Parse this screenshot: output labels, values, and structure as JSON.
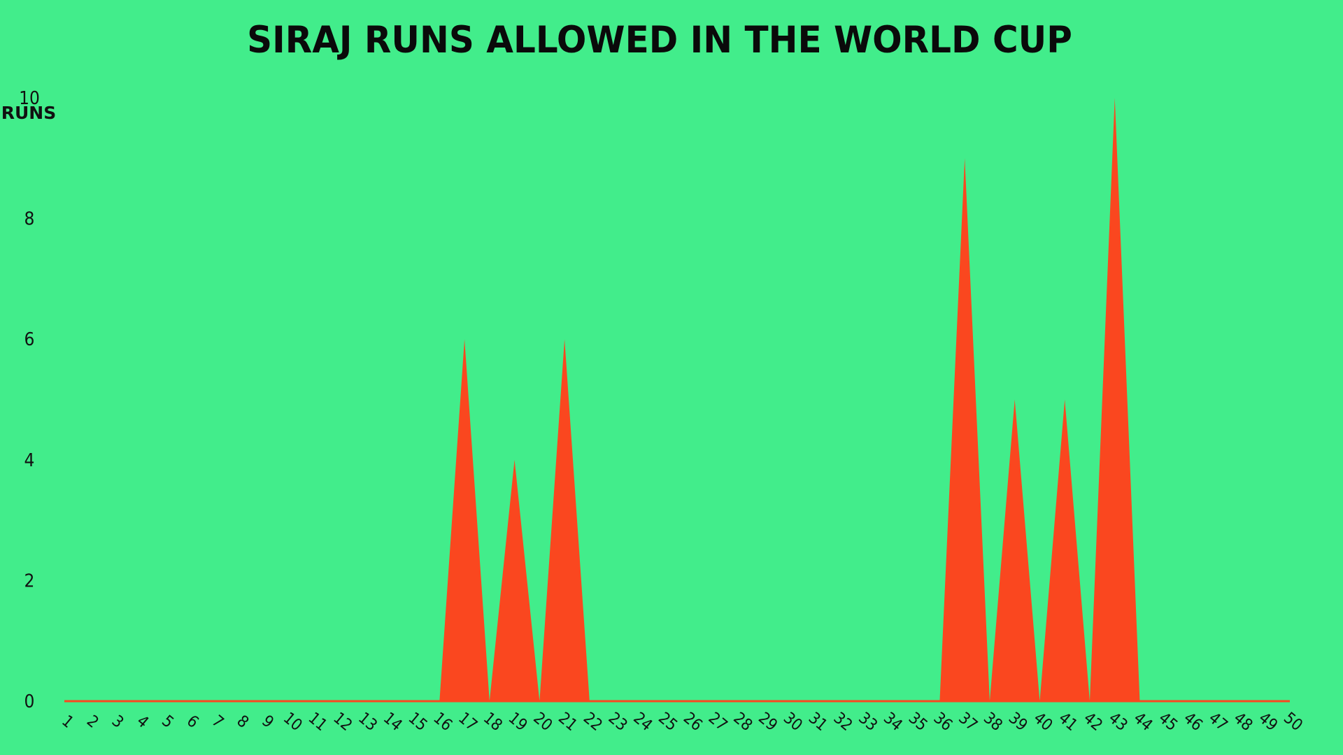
{
  "colors": {
    "background": "#42ed8b",
    "area_fill": "#fa471f",
    "text": "#111111"
  },
  "chart_data": {
    "type": "area",
    "title": "SIRAJ RUNS ALLOWED IN THE WORLD CUP",
    "xlabel": "",
    "ylabel": "RUNS",
    "x": [
      1,
      2,
      3,
      4,
      5,
      6,
      7,
      8,
      9,
      10,
      11,
      12,
      13,
      14,
      15,
      16,
      17,
      18,
      19,
      20,
      21,
      22,
      23,
      24,
      25,
      26,
      27,
      28,
      29,
      30,
      31,
      32,
      33,
      34,
      35,
      36,
      37,
      38,
      39,
      40,
      41,
      42,
      43,
      44,
      45,
      46,
      47,
      48,
      49,
      50
    ],
    "series": [
      {
        "values": [
          0,
          0,
          0,
          0,
          0,
          0,
          0,
          0,
          0,
          0,
          0,
          0,
          0,
          0,
          0,
          0,
          6,
          0,
          4,
          0,
          6,
          0,
          0,
          0,
          0,
          0,
          0,
          0,
          0,
          0,
          0,
          0,
          0,
          0,
          0,
          0,
          9,
          0,
          5,
          0,
          5,
          0,
          10,
          0,
          0,
          0,
          0,
          0,
          0,
          0
        ]
      }
    ],
    "yticks": [
      "0",
      "2",
      "4",
      "6",
      "8",
      "10"
    ],
    "ylim": [
      0,
      10
    ],
    "grid": false,
    "legend": "none"
  }
}
